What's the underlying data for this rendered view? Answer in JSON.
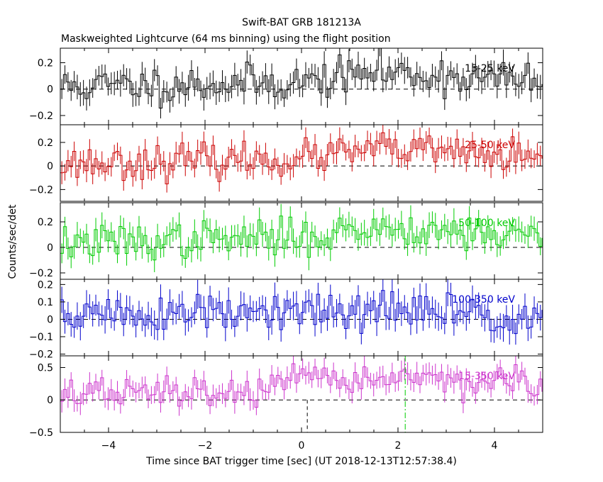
{
  "chart_data": {
    "type": "line",
    "title": "Swift-BAT GRB 181213A",
    "subtitle": "Maskweighted Lightcurve (64 ms binning) using the flight position",
    "xlabel": "Time since BAT trigger time [sec] (UT 2018-12-13T12:57:38.4)",
    "ylabel": "Counts/sec/det",
    "xlim": [
      -5,
      5
    ],
    "x_ticks": [
      -4,
      -2,
      0,
      2,
      4
    ],
    "x_tick_labels": [
      "−4",
      "−2",
      "0",
      "2",
      "4"
    ],
    "bin_width_sec": 0.064,
    "vertical_markers": [
      {
        "x": 0.12,
        "style": "dashed",
        "color": "#000000",
        "panel": "15-350 keV"
      },
      {
        "x": 2.15,
        "style": "dash-dot",
        "color": "#00cc00",
        "panel": "15-350 keV"
      }
    ],
    "panels": [
      {
        "name": "15-25 keV",
        "color": "#000000",
        "ylim": [
          -0.27,
          0.31
        ],
        "yticks": [
          -0.2,
          0,
          0.2
        ],
        "ytick_labels": [
          "−0.2",
          "0",
          "0.2"
        ],
        "baseline": 0,
        "trend": [
          [
            -5,
            0.02
          ],
          [
            0,
            0.05
          ],
          [
            1.5,
            0.13
          ],
          [
            3,
            0.1
          ],
          [
            5,
            0.05
          ]
        ],
        "noise": 0.07,
        "err": 0.085,
        "seed": 11
      },
      {
        "name": "25-50 keV",
        "color": "#cc0000",
        "ylim": [
          -0.3,
          0.35
        ],
        "yticks": [
          -0.2,
          0,
          0.2
        ],
        "ytick_labels": [
          "−0.2",
          "0",
          "0.2"
        ],
        "baseline": 0,
        "trend": [
          [
            -5,
            0.02
          ],
          [
            0,
            0.06
          ],
          [
            1.5,
            0.14
          ],
          [
            3,
            0.12
          ],
          [
            5,
            0.05
          ]
        ],
        "noise": 0.07,
        "err": 0.085,
        "seed": 23
      },
      {
        "name": "50-100 keV",
        "color": "#00cc00",
        "ylim": [
          -0.25,
          0.35
        ],
        "yticks": [
          -0.2,
          0,
          0.2
        ],
        "ytick_labels": [
          "−0.2",
          "0",
          "0.2"
        ],
        "baseline": 0,
        "trend": [
          [
            -5,
            0.03
          ],
          [
            0,
            0.08
          ],
          [
            1.5,
            0.15
          ],
          [
            3,
            0.14
          ],
          [
            5,
            0.08
          ]
        ],
        "noise": 0.07,
        "err": 0.085,
        "seed": 37
      },
      {
        "name": "100-350 keV",
        "color": "#0000cc",
        "ylim": [
          -0.21,
          0.23
        ],
        "yticks": [
          -0.2,
          -0.1,
          0,
          0.1,
          0.2
        ],
        "ytick_labels": [
          "−0.2",
          "−0.1",
          "0",
          "0.1",
          "0.2"
        ],
        "baseline": 0,
        "trend": [
          [
            -5,
            0.03
          ],
          [
            0,
            0.03
          ],
          [
            2,
            0.05
          ],
          [
            5,
            0.02
          ]
        ],
        "noise": 0.06,
        "err": 0.07,
        "seed": 51
      },
      {
        "name": "15-350 keV",
        "color": "#cc33cc",
        "ylim": [
          -0.5,
          0.68
        ],
        "yticks": [
          -0.5,
          0,
          0.5
        ],
        "ytick_labels": [
          "−0.5",
          "0",
          "0.5"
        ],
        "baseline": 0,
        "trend": [
          [
            -5,
            0.1
          ],
          [
            -1,
            0.12
          ],
          [
            0,
            0.28
          ],
          [
            2,
            0.35
          ],
          [
            3.5,
            0.3
          ],
          [
            5,
            0.18
          ]
        ],
        "noise": 0.12,
        "err": 0.15,
        "seed": 67
      }
    ]
  }
}
